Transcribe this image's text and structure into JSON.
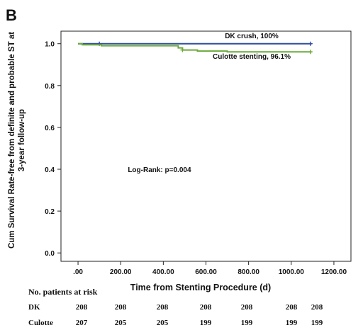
{
  "panel_label": "B",
  "chart_data": {
    "type": "line",
    "step": true,
    "ylabel_line1": "Cum Survival Rate-free from definite and probable ST at",
    "ylabel_line2": "3-year follow-up",
    "xlabel": "Time from Stenting Procedure (d)",
    "xlim": [
      -80,
      1280
    ],
    "ylim": [
      -0.04,
      1.06
    ],
    "x_ticks": [
      0,
      200,
      400,
      600,
      800,
      1000,
      1200
    ],
    "x_tick_labels": [
      ".00",
      "200.00",
      "400.00",
      "600.00",
      "800.00",
      "1000.00",
      "1200.00"
    ],
    "y_ticks": [
      0,
      0.2,
      0.4,
      0.6,
      0.8,
      1.0
    ],
    "y_tick_labels": [
      "0.0",
      "0.2",
      "0.4",
      "0.6",
      "0.8",
      "1.0"
    ],
    "grid": false,
    "series": [
      {
        "name": "DK crush, 100%",
        "color": "#2f4fa0",
        "points": [
          [
            0,
            1.0
          ],
          [
            1095,
            1.0
          ]
        ],
        "censor_marks": [
          [
            100,
            1.0
          ],
          [
            1090,
            1.0
          ]
        ]
      },
      {
        "name": "Culotte stenting, 96.1%",
        "color": "#6aaa3a",
        "points": [
          [
            0,
            1.0
          ],
          [
            20,
            0.995
          ],
          [
            110,
            0.99
          ],
          [
            470,
            0.98
          ],
          [
            490,
            0.97
          ],
          [
            560,
            0.965
          ],
          [
            700,
            0.961
          ],
          [
            1095,
            0.961
          ]
        ],
        "censor_marks": [
          [
            490,
            0.97
          ],
          [
            1090,
            0.961
          ]
        ]
      }
    ],
    "annotations": [
      {
        "text": "Log-Rank: p=0.004",
        "x": 350,
        "y": 0.4
      }
    ]
  },
  "risk_table": {
    "title": "No. patients at risk",
    "rows": [
      {
        "label": "DK",
        "values": [
          "208",
          "208",
          "208",
          "208",
          "208",
          "208",
          "208"
        ]
      },
      {
        "label": "Culotte",
        "values": [
          "207",
          "205",
          "205",
          "199",
          "199",
          "199",
          "199"
        ]
      }
    ]
  }
}
